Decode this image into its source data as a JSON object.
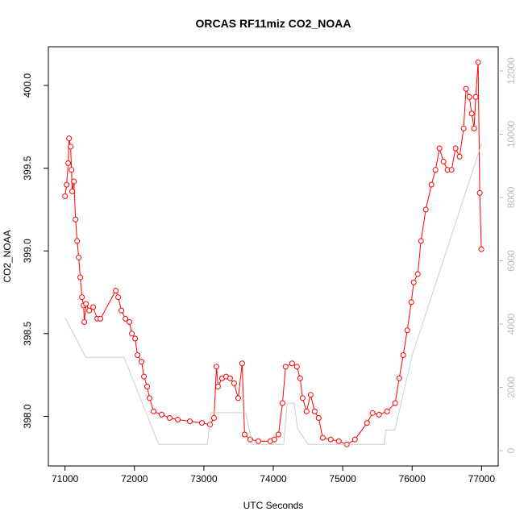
{
  "chart_data": {
    "type": "line",
    "title": "ORCAS RF11miz CO2_NOAA",
    "x_label": "UTC Seconds",
    "y_label": "CO2_NOAA",
    "xlim": [
      70760,
      77240
    ],
    "xticks": [
      71000,
      72000,
      73000,
      74000,
      75000,
      76000,
      77000
    ],
    "ylim": [
      397.7,
      400.234
    ],
    "yticks": [
      {
        "value": 398.0,
        "label": "398.0"
      },
      {
        "value": 398.5,
        "label": "398.5"
      },
      {
        "value": 399.0,
        "label": "399.0"
      },
      {
        "value": 399.5,
        "label": "399.5"
      },
      {
        "value": 400.0,
        "label": "400.0"
      }
    ],
    "y2lim": [
      -484,
      12764
    ],
    "y2ticks": [
      0,
      2000,
      4000,
      6000,
      8000,
      10000,
      12000
    ],
    "series": [
      {
        "color": "#ff0000",
        "markers": true,
        "x": [
          71000,
          71023,
          71046,
          71058,
          71081,
          71093,
          71104,
          71128,
          71151,
          71174,
          71197,
          71220,
          71244,
          71267,
          71278,
          71302,
          71348,
          71406,
          71464,
          71510,
          71731,
          71766,
          71812,
          71870,
          71928,
          71963,
          72009,
          72044,
          72102,
          72137,
          72183,
          72218,
          72276,
          72392,
          72508,
          72624,
          72798,
          72972,
          73088,
          73146,
          73181,
          73204,
          73262,
          73320,
          73378,
          73436,
          73494,
          73552,
          73587,
          73668,
          73784,
          73958,
          74016,
          74074,
          74132,
          74178,
          74271,
          74341,
          74387,
          74422,
          74480,
          74538,
          74596,
          74654,
          74712,
          74828,
          74944,
          75060,
          75176,
          75350,
          75431,
          75524,
          75640,
          75756,
          75814,
          75872,
          75930,
          75988,
          76023,
          76081,
          76128,
          76197,
          76278,
          76336,
          76394,
          76452,
          76510,
          76568,
          76626,
          76684,
          76742,
          76777,
          76824,
          76858,
          76893,
          76916,
          76951,
          76974,
          76997
        ],
        "values": [
          399.33,
          399.4,
          399.53,
          399.68,
          399.63,
          399.49,
          399.36,
          399.42,
          399.19,
          399.06,
          398.96,
          398.84,
          398.72,
          398.67,
          398.57,
          398.68,
          398.64,
          398.66,
          398.59,
          398.59,
          398.76,
          398.72,
          398.64,
          398.59,
          398.57,
          398.5,
          398.47,
          398.37,
          398.33,
          398.24,
          398.18,
          398.11,
          398.03,
          398.01,
          397.99,
          397.98,
          397.97,
          397.96,
          397.95,
          397.99,
          398.3,
          398.18,
          398.23,
          398.24,
          398.23,
          398.2,
          398.11,
          398.32,
          397.89,
          397.86,
          397.85,
          397.85,
          397.86,
          397.89,
          398.08,
          398.3,
          398.32,
          398.3,
          398.23,
          398.11,
          398.03,
          398.13,
          398.03,
          397.99,
          397.87,
          397.86,
          397.85,
          397.83,
          397.86,
          397.96,
          398.02,
          398.01,
          398.03,
          398.08,
          398.23,
          398.37,
          398.52,
          398.69,
          398.81,
          398.86,
          399.06,
          399.25,
          399.4,
          399.49,
          399.62,
          399.54,
          399.49,
          399.49,
          399.62,
          399.57,
          399.74,
          399.98,
          399.93,
          399.83,
          399.74,
          399.93,
          400.14,
          399.35,
          399.01
        ]
      },
      {
        "color": "#cccccc",
        "axis": "y2",
        "markers": false,
        "x": [
          71000,
          71300,
          71850,
          72350,
          73050,
          73100,
          73600,
          73700,
          74150,
          74200,
          74300,
          74350,
          74500,
          75600,
          75620,
          75750,
          76000,
          77000
        ],
        "values": [
          4200,
          2950,
          2950,
          200,
          200,
          1200,
          1200,
          200,
          200,
          1500,
          1500,
          700,
          200,
          200,
          650,
          650,
          3000,
          9700
        ]
      }
    ]
  }
}
